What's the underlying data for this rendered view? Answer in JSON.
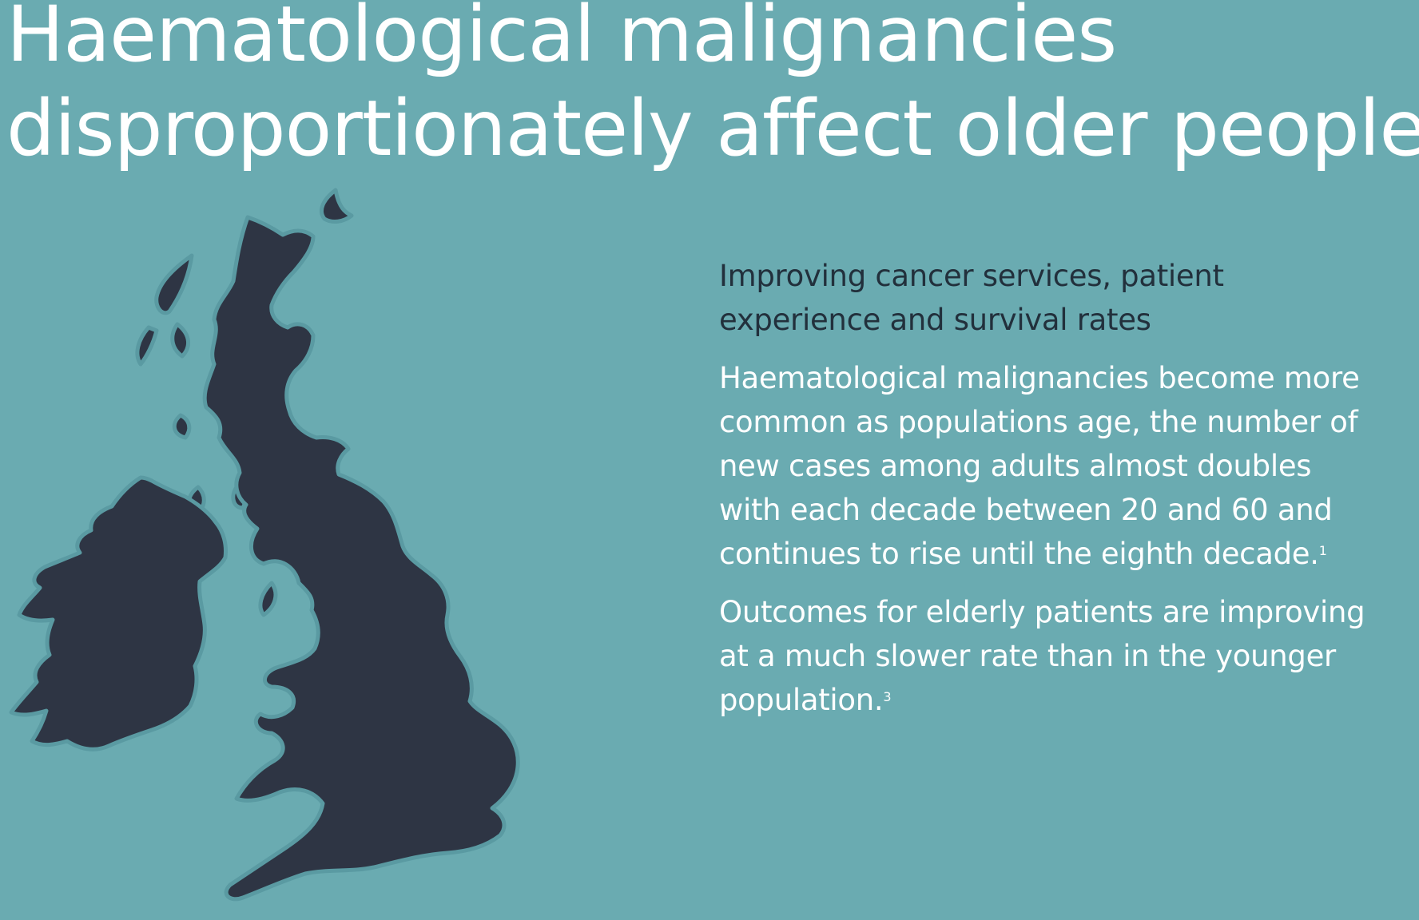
{
  "headline": {
    "line1": "Haematological malignancies",
    "line2": "disproportionately affect older people"
  },
  "colors": {
    "background": "#6aabb1",
    "map_fill": "#2e3544",
    "map_outline": "#5a9aa2",
    "subheading_text": "#22303c",
    "body_text": "#ffffff"
  },
  "map": {
    "icon": "uk-ireland-map-icon"
  },
  "copy": {
    "subheading": "Improving cancer services, patient experience and survival rates",
    "paragraph1": {
      "text": "Haematological malignancies become more common as populations age, the number of new cases among adults almost doubles with each decade between 20 and 60 and continues to rise until the eighth decade.",
      "ref": "1"
    },
    "paragraph2": {
      "text": "Outcomes for elderly patients are improving at a much slower rate than in the younger population.",
      "ref": "3"
    }
  }
}
